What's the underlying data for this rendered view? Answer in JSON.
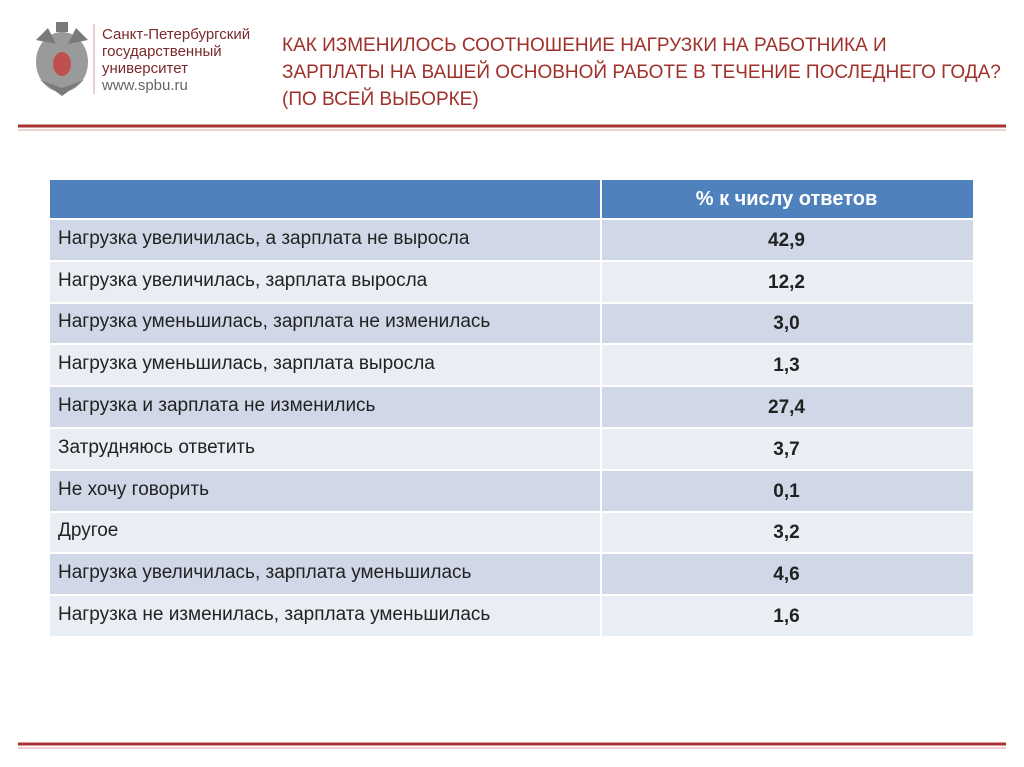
{
  "logo": {
    "lines": [
      "Санкт-Петербургский",
      "государственный",
      "университет",
      "www.spbu.ru"
    ]
  },
  "title": {
    "lines": [
      "КАК ИЗМЕНИЛОСЬ СООТНОШЕНИЕ НАГРУЗКИ НА РАБОТНИКА И",
      "ЗАРПЛАТЫ НА ВАШЕЙ ОСНОВНОЙ РАБОТЕ В ТЕЧЕНИЕ ПОСЛЕДНЕГО ГОДА?",
      "(ПО ВСЕЙ ВЫБОРКЕ)"
    ]
  },
  "table": {
    "header": {
      "column": "% к числу ответов"
    },
    "rows": [
      [
        "Нагрузка увеличилась, а зарплата не выросла",
        "42,9"
      ],
      [
        "Нагрузка увеличилась, зарплата выросла",
        "12,2"
      ],
      [
        "Нагрузка уменьшилась, зарплата не изменилась",
        "3,0"
      ],
      [
        "Нагрузка уменьшилась, зарплата выросла",
        "1,3"
      ],
      [
        "Нагрузка и зарплата не изменились",
        "27,4"
      ],
      [
        "Затрудняюсь ответить",
        "3,7"
      ],
      [
        "Не хочу говорить",
        "0,1"
      ],
      [
        "Другое",
        "3,2"
      ],
      [
        "Нагрузка увеличилась, зарплата уменьшилась",
        "4,6"
      ],
      [
        "Нагрузка не изменилась, зарплата уменьшилась",
        "1,6"
      ]
    ]
  }
}
